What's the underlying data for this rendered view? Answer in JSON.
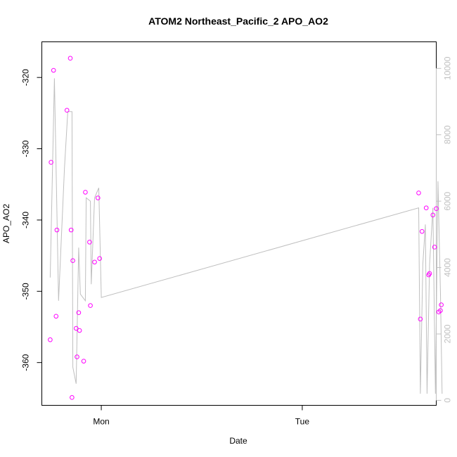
{
  "chart_data": {
    "type": "scatter",
    "title": "ATOM2 Northeast_Pacific_2 APO_AO2",
    "xlabel": "Date",
    "ylabel": "APO_AO2",
    "x_unit": "hours",
    "x_ticks": [
      {
        "label": "Mon",
        "value": 24
      },
      {
        "label": "Tue",
        "value": 48
      }
    ],
    "xlim": [
      16.9,
      64.0
    ],
    "ylim": [
      -366.0,
      -315.0
    ],
    "y_ticks": [
      -360,
      -350,
      -340,
      -330,
      -320
    ],
    "y2lim": [
      -150,
      10800
    ],
    "y2_ticks": [
      0,
      2000,
      4000,
      6000,
      8000,
      10000
    ],
    "grid": false,
    "colors": {
      "points": "#ff00ff",
      "line": "#bfbfbf",
      "axis": "#000000",
      "right_axis": "#c0c0c0"
    },
    "series": [
      {
        "marker": "circle",
        "axis": "left",
        "points": [
          [
            17.9,
            -356.8
          ],
          [
            18.0,
            -331.9
          ],
          [
            18.3,
            -319.0
          ],
          [
            18.6,
            -353.5
          ],
          [
            18.7,
            -341.4
          ],
          [
            19.9,
            -324.6
          ],
          [
            20.3,
            -317.3
          ],
          [
            20.4,
            -341.4
          ],
          [
            20.5,
            -364.9
          ],
          [
            20.6,
            -345.7
          ],
          [
            21.0,
            -355.2
          ],
          [
            21.1,
            -359.2
          ],
          [
            21.3,
            -353.0
          ],
          [
            21.4,
            -355.5
          ],
          [
            21.9,
            -359.8
          ],
          [
            22.1,
            -336.1
          ],
          [
            22.6,
            -343.1
          ],
          [
            22.7,
            -352.0
          ],
          [
            23.2,
            -345.9
          ],
          [
            23.6,
            -336.9
          ],
          [
            23.8,
            -345.4
          ],
          [
            61.9,
            -336.2
          ],
          [
            62.1,
            -353.9
          ],
          [
            62.3,
            -341.6
          ],
          [
            62.8,
            -338.3
          ],
          [
            63.1,
            -347.7
          ],
          [
            63.2,
            -347.5
          ],
          [
            63.6,
            -339.3
          ],
          [
            63.8,
            -343.8
          ],
          [
            64.0,
            -338.4
          ],
          [
            64.3,
            -352.9
          ],
          [
            64.5,
            -352.7
          ],
          [
            64.6,
            -351.9
          ]
        ]
      },
      {
        "marker": "line",
        "axis": "right",
        "points": [
          [
            17.9,
            3700
          ],
          [
            18.4,
            9700
          ],
          [
            18.9,
            3000
          ],
          [
            19.6,
            7000
          ],
          [
            20.0,
            8700
          ],
          [
            20.5,
            8700
          ],
          [
            20.6,
            1000
          ],
          [
            21.0,
            500
          ],
          [
            21.3,
            4600
          ],
          [
            21.5,
            3200
          ],
          [
            22.1,
            3000
          ],
          [
            22.2,
            6100
          ],
          [
            22.7,
            6000
          ],
          [
            22.8,
            3500
          ],
          [
            23.2,
            6100
          ],
          [
            23.7,
            6400
          ],
          [
            24.0,
            3100
          ],
          [
            61.9,
            5800
          ],
          [
            62.1,
            200
          ],
          [
            62.4,
            4100
          ],
          [
            62.7,
            5300
          ],
          [
            62.9,
            200
          ],
          [
            63.2,
            4100
          ],
          [
            63.6,
            5800
          ],
          [
            63.9,
            200
          ],
          [
            64.2,
            6600
          ],
          [
            64.5,
            3200
          ],
          [
            64.7,
            200
          ]
        ]
      }
    ]
  }
}
